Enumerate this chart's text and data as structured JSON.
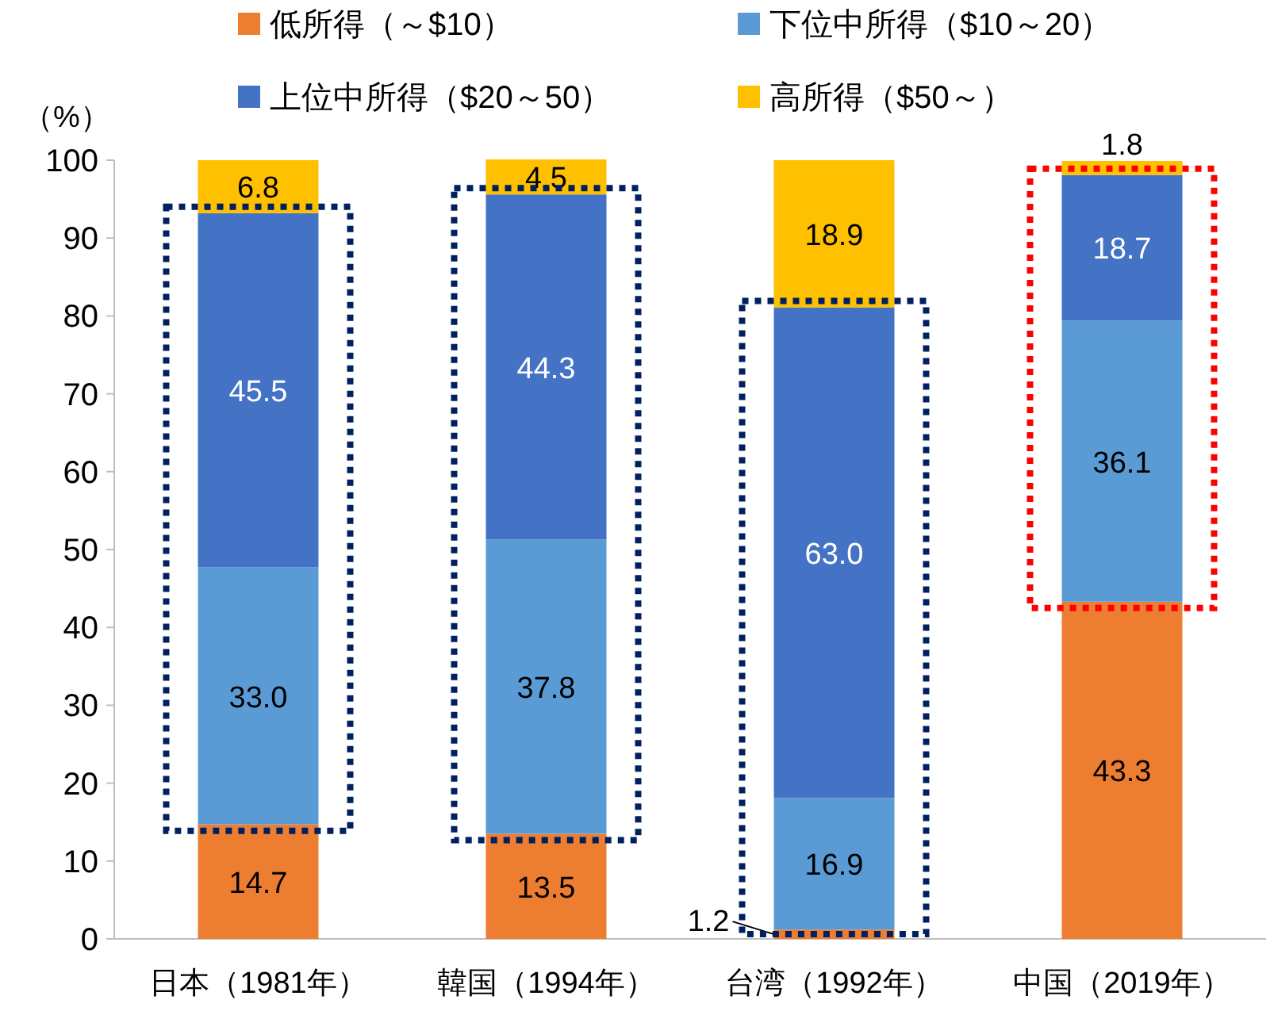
{
  "chart_data": {
    "type": "bar",
    "stacked": true,
    "ylabel": "（%）",
    "categories": [
      "日本（1981年）",
      "韓国（1994年）",
      "台湾（1992年）",
      "中国（2019年）"
    ],
    "series": [
      {
        "name": "低所得（～$10）",
        "color": "#ed7d31",
        "values": [
          14.7,
          13.5,
          1.2,
          43.3
        ],
        "value_labels": [
          "14.7",
          "13.5",
          "1.2",
          "43.3"
        ]
      },
      {
        "name": "下位中所得（$10～20）",
        "color": "#5b9bd5",
        "values": [
          33.0,
          37.8,
          16.9,
          36.1
        ],
        "value_labels": [
          "33.0",
          "37.8",
          "16.9",
          "36.1"
        ]
      },
      {
        "name": "上位中所得（$20～50）",
        "color": "#4472c4",
        "values": [
          45.5,
          44.3,
          63.0,
          18.7
        ],
        "value_labels": [
          "45.5",
          "44.3",
          "63.0",
          "18.7"
        ]
      },
      {
        "name": "高所得（$50～）",
        "color": "#ffc000",
        "values": [
          6.8,
          4.5,
          18.9,
          1.8
        ],
        "value_labels": [
          "6.8",
          "4.5",
          "18.9",
          "1.8"
        ]
      }
    ],
    "ylim": [
      0,
      100
    ],
    "yticks": [
      0,
      10,
      20,
      30,
      40,
      50,
      60,
      70,
      80,
      90,
      100
    ],
    "legend": "top",
    "grid": false
  }
}
